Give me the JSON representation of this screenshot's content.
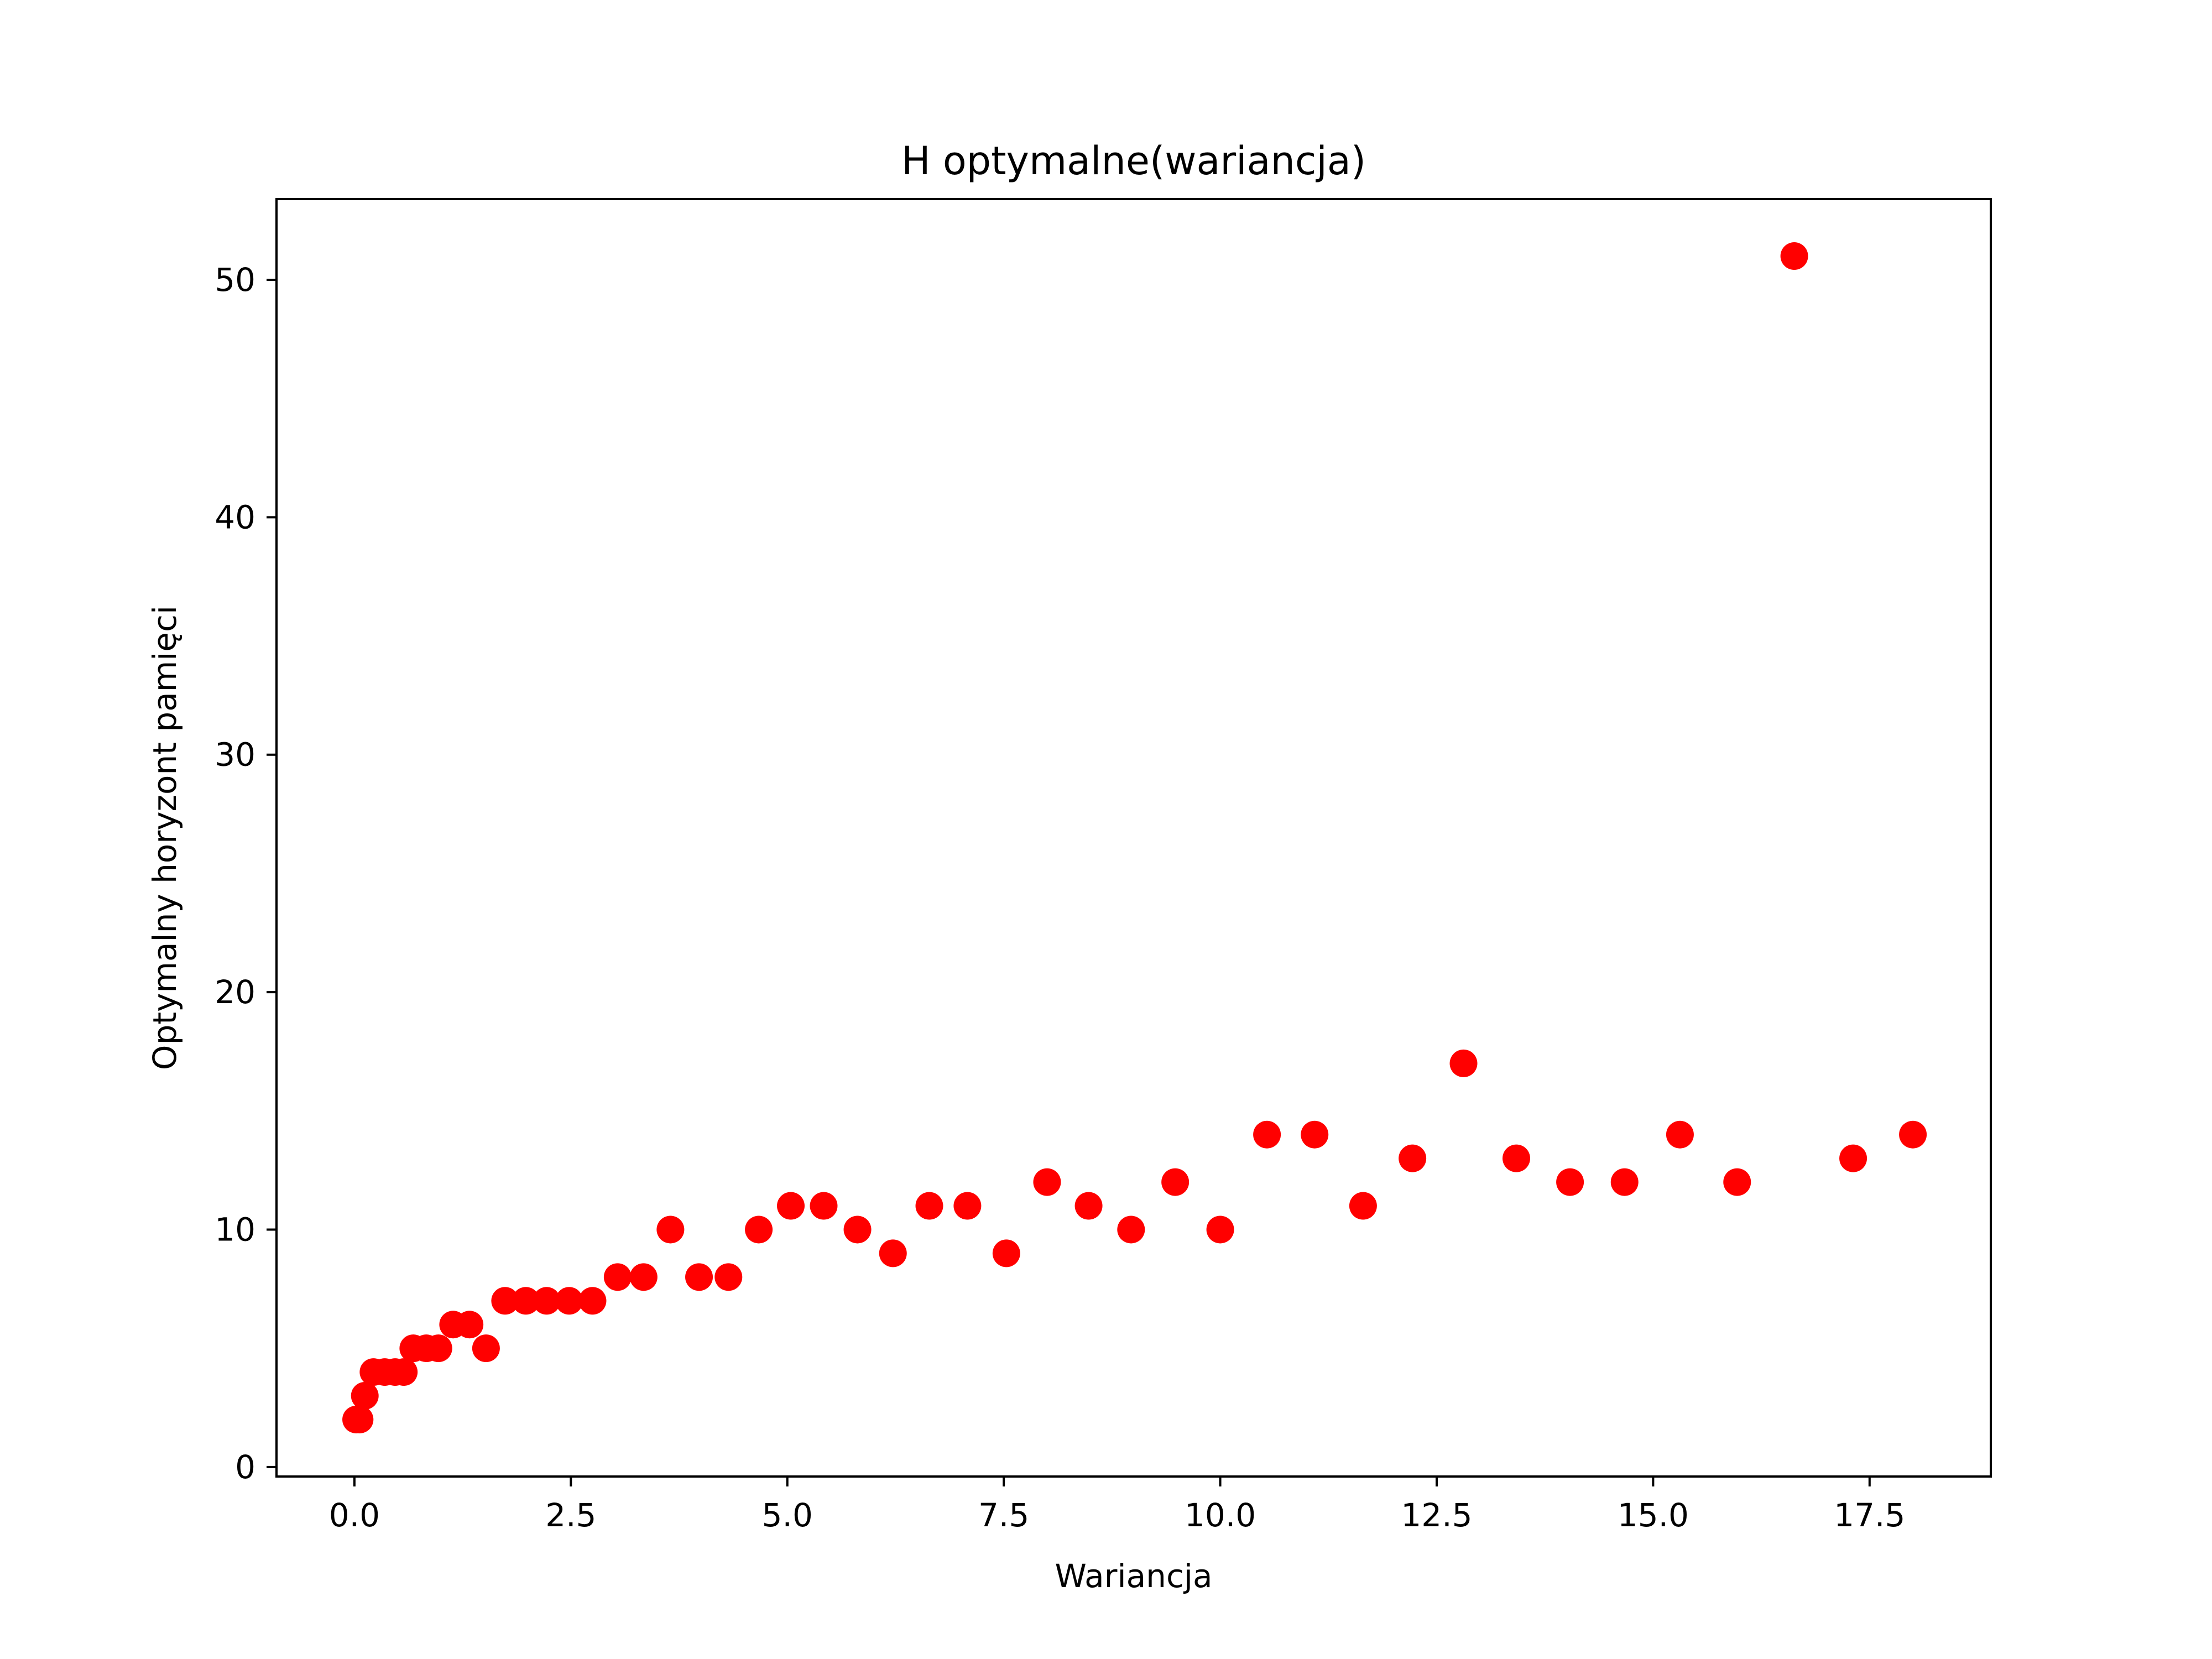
{
  "chart_data": {
    "type": "scatter",
    "title": "H optymalne(wariancja)",
    "xlabel": "Wariancja",
    "ylabel": "Optymalny horyzont pamięci",
    "xlim": [
      -0.9,
      18.9
    ],
    "ylim": [
      -0.4,
      53.4
    ],
    "grid": false,
    "marker_color": "#ff0000",
    "x_ticks": [
      0.0,
      2.5,
      5.0,
      7.5,
      10.0,
      12.5,
      15.0,
      17.5
    ],
    "x_tick_labels": [
      "0.0",
      "2.5",
      "5.0",
      "7.5",
      "10.0",
      "12.5",
      "15.0",
      "17.5"
    ],
    "y_ticks": [
      0,
      10,
      20,
      30,
      40,
      50
    ],
    "y_tick_labels": [
      "0",
      "10",
      "20",
      "30",
      "40",
      "50"
    ],
    "series": [
      {
        "points": [
          [
            0.02,
            2
          ],
          [
            0.06,
            2
          ],
          [
            0.12,
            3
          ],
          [
            0.22,
            4
          ],
          [
            0.35,
            4
          ],
          [
            0.47,
            4
          ],
          [
            0.57,
            4
          ],
          [
            0.68,
            5
          ],
          [
            0.83,
            5
          ],
          [
            0.97,
            5
          ],
          [
            1.14,
            6
          ],
          [
            1.33,
            6
          ],
          [
            1.52,
            5
          ],
          [
            1.74,
            7
          ],
          [
            1.98,
            7
          ],
          [
            2.22,
            7
          ],
          [
            2.48,
            7
          ],
          [
            2.75,
            7
          ],
          [
            3.04,
            8
          ],
          [
            3.34,
            8
          ],
          [
            3.65,
            10
          ],
          [
            3.98,
            8
          ],
          [
            4.32,
            8
          ],
          [
            4.67,
            10
          ],
          [
            5.04,
            11
          ],
          [
            5.42,
            11
          ],
          [
            5.81,
            10
          ],
          [
            6.22,
            9
          ],
          [
            6.64,
            11
          ],
          [
            7.08,
            11
          ],
          [
            7.53,
            9
          ],
          [
            8.0,
            12
          ],
          [
            8.48,
            11
          ],
          [
            8.97,
            10
          ],
          [
            9.48,
            12
          ],
          [
            10.0,
            10
          ],
          [
            10.54,
            14
          ],
          [
            11.09,
            14
          ],
          [
            11.65,
            11
          ],
          [
            12.22,
            13
          ],
          [
            12.81,
            17
          ],
          [
            13.42,
            13
          ],
          [
            14.04,
            12
          ],
          [
            14.67,
            12
          ],
          [
            15.31,
            14
          ],
          [
            15.97,
            12
          ],
          [
            16.63,
            51
          ],
          [
            17.31,
            13
          ],
          [
            18.0,
            14
          ]
        ]
      }
    ]
  }
}
